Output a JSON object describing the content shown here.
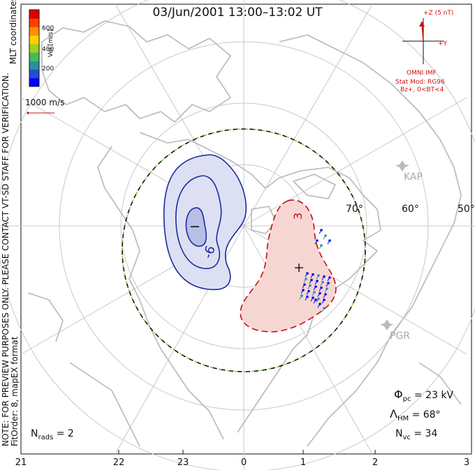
{
  "title": "03/Jun/2001 13:00–13:02 UT",
  "note_line1": "NOTE: FOR PREVIEW PURPOSES ONLY. PLEASE CONTACT VT-SD STAFF FOR VERIFICATION.",
  "note_line2": "FitOrder: 8, mapEX format",
  "coord_label": "MLT coordinates",
  "colorbar": {
    "title": "Vel [m/s]",
    "ticks": [
      "600",
      "400",
      "200"
    ],
    "colors": [
      "#0000ff",
      "#1f4fd0",
      "#2a8fa0",
      "#3fbf5a",
      "#a0d020",
      "#ffd000",
      "#ff9000",
      "#ff4000",
      "#e00000"
    ]
  },
  "scale_vector_label": "1000 m/s",
  "imf": {
    "z_label": "+Z (5 nT)",
    "y_label": "+Y",
    "omni": "OMNI IMF",
    "model_line1": "Stat Mod: RG96",
    "model_line2": "Bz+, 0<BT<4"
  },
  "latitude_labels": [
    "70°",
    "60°",
    "50°"
  ],
  "mlt_labels": [
    "21",
    "22",
    "23",
    "0",
    "1",
    "2",
    "3"
  ],
  "stations": [
    "KAP",
    "PGR"
  ],
  "contour_labels": {
    "negative": "-6",
    "positive": "3"
  },
  "stats": {
    "phi_pc": "= 23 kV",
    "lambda_hm": "= 68°",
    "n_vc": "= 34",
    "n_rads": "= 2"
  },
  "colors": {
    "negative_contour": "#1a2aa0",
    "negative_fill": "#d8dcf0",
    "positive_contour": "#c01010",
    "positive_fill": "#f6d6d2",
    "grid": "#c8c8c8",
    "coast": "#b8b8b8",
    "hm_boundary_dash": "#8ad040"
  }
}
